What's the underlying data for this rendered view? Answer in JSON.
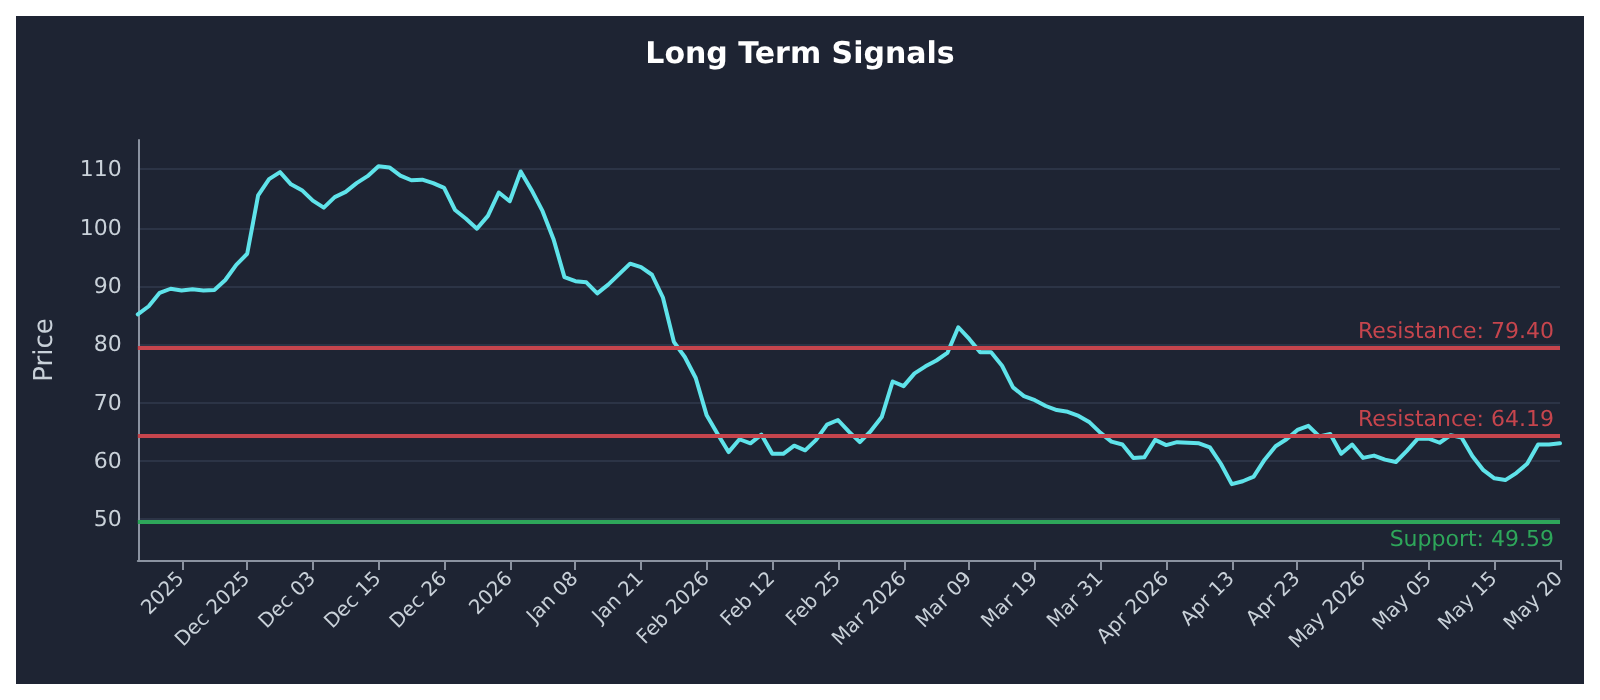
{
  "chart_data": {
    "type": "line",
    "title": "Long Term Signals",
    "ylabel": "Price",
    "categories": [
      null,
      null,
      null,
      null,
      "2025",
      null,
      null,
      null,
      null,
      null,
      "Dec 2025",
      null,
      null,
      null,
      null,
      null,
      "Dec 03",
      null,
      null,
      null,
      null,
      null,
      "Dec 15",
      null,
      null,
      null,
      null,
      null,
      "Dec 26",
      null,
      null,
      null,
      null,
      null,
      "2026",
      null,
      null,
      null,
      null,
      null,
      "Jan 08",
      null,
      null,
      null,
      null,
      null,
      "Jan 21",
      null,
      null,
      null,
      null,
      null,
      "Feb 2026",
      null,
      null,
      null,
      null,
      null,
      "Feb 12",
      null,
      null,
      null,
      null,
      null,
      "Feb 25",
      null,
      null,
      null,
      null,
      null,
      "Mar 2026",
      null,
      null,
      null,
      null,
      null,
      "Mar 09",
      null,
      null,
      null,
      null,
      null,
      "Mar 19",
      null,
      null,
      null,
      null,
      null,
      "Mar 31",
      null,
      null,
      null,
      null,
      null,
      "Apr 2026",
      null,
      null,
      null,
      null,
      null,
      "Apr 13",
      null,
      null,
      null,
      null,
      null,
      "Apr 23",
      null,
      null,
      null,
      null,
      null,
      "May 2026",
      null,
      null,
      null,
      null,
      null,
      "May 05",
      null,
      null,
      null,
      null,
      null,
      "May 15",
      null,
      null,
      null,
      null,
      null,
      "May 20"
    ],
    "series": [
      {
        "color": "#5fe3ea",
        "values": [
          85.1,
          86.5,
          88.8,
          89.5,
          89.2,
          89.4,
          89.2,
          89.3,
          91,
          93.6,
          95.5,
          105.5,
          108.3,
          109.5,
          107.4,
          106.4,
          104.6,
          103.4,
          105.2,
          106.1,
          107.6,
          108.8,
          110.5,
          110.3,
          108.9,
          108.1,
          108.2,
          107.6,
          106.8,
          103,
          101.5,
          99.8,
          102,
          106,
          104.5,
          109.6,
          106.4,
          102.8,
          98,
          91.5,
          90.8,
          90.6,
          88.7,
          90.2,
          92,
          93.8,
          93.2,
          91.9,
          88,
          80.4,
          77.8,
          74.2,
          67.8,
          64.6,
          61.5,
          63.7,
          63,
          64.5,
          61.2,
          61.2,
          62.6,
          61.8,
          63.6,
          66.2,
          67,
          65,
          63.2,
          65.1,
          67.5,
          73.6,
          72.8,
          75,
          76.2,
          77.2,
          78.5,
          82.9,
          80.9,
          78.6,
          78.6,
          76.3,
          72.6,
          71.1,
          70.4,
          69.4,
          68.7,
          68.4,
          67.7,
          66.6,
          64.8,
          63.3,
          62.8,
          60.5,
          60.6,
          63.6,
          62.7,
          63.2,
          63.1,
          63,
          62.3,
          59.5,
          56,
          56.5,
          57.3,
          60.2,
          62.5,
          63.7,
          65.3,
          66,
          64.2,
          64.6,
          61.2,
          62.8,
          60.5,
          60.9,
          60.2,
          59.8,
          61.7,
          63.8,
          63.8,
          63.1,
          64.4,
          64,
          60.8,
          58.4,
          57,
          56.7,
          57.9,
          59.5,
          62.8,
          62.8,
          63
        ]
      }
    ],
    "ylim": [
      43,
      115
    ],
    "yticks": [
      50,
      60,
      70,
      80,
      90,
      100,
      110
    ],
    "grid": "y",
    "marker": "none",
    "line_style": "solid",
    "ref_lines": [
      {
        "axis": "y",
        "value": 79.4,
        "label": "Resistance: 79.40",
        "color": "#c6454d"
      },
      {
        "axis": "y",
        "value": 64.19,
        "label": "Resistance: 64.19",
        "color": "#c6454d"
      },
      {
        "axis": "y",
        "value": 49.59,
        "label": "Support: 49.59",
        "color": "#2ea65a"
      }
    ]
  }
}
